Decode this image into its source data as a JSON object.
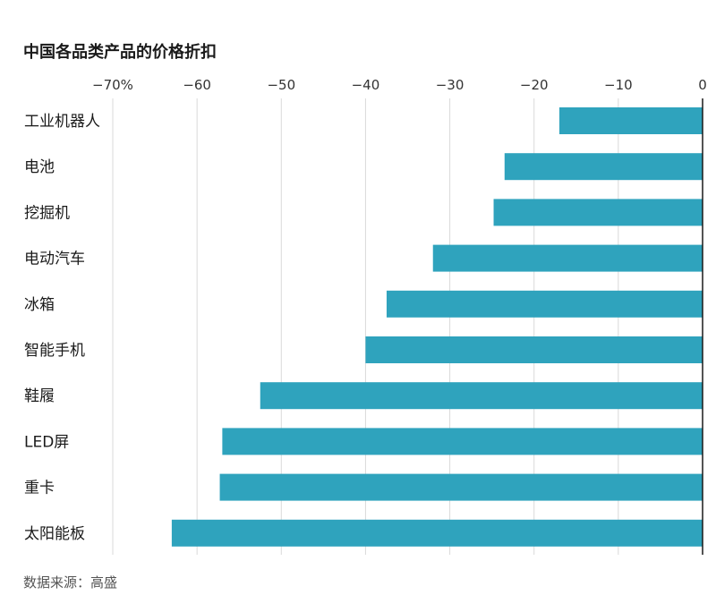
{
  "chart_data": {
    "type": "bar",
    "orientation": "horizontal",
    "title": "中国各品类产品的价格折扣",
    "categories": [
      "工业机器人",
      "电池",
      "挖掘机",
      "电动汽车",
      "冰箱",
      "智能手机",
      "鞋履",
      "LED屏",
      "重卡",
      "太阳能板"
    ],
    "values": [
      -17,
      -23.5,
      -24.8,
      -32,
      -37.5,
      -40,
      -52.5,
      -57,
      -57.3,
      -63
    ],
    "xlim": [
      -70,
      0
    ],
    "xticks": [
      -70,
      -60,
      -50,
      -40,
      -30,
      -20,
      -10,
      0
    ],
    "xtick_labels": [
      "−70%",
      "−60",
      "−50",
      "−40",
      "−30",
      "−20",
      "−10",
      "0"
    ],
    "axis_position": "top",
    "grid": true,
    "bar_color": "#2fa3bd",
    "source": "数据来源：高盛"
  }
}
